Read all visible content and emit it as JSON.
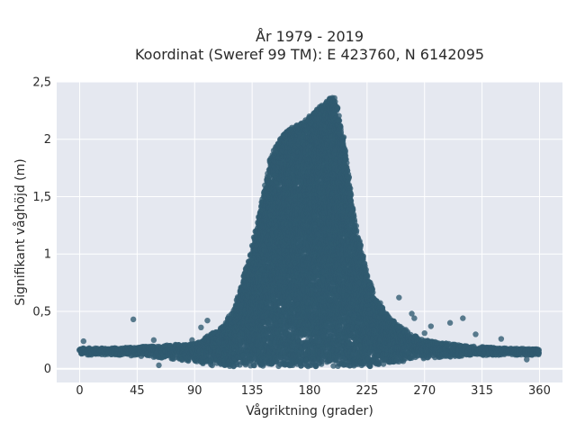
{
  "chart_data": {
    "type": "scatter",
    "title_lines": [
      "År 1979 - 2019",
      "Koordinat (Sweref 99 TM): E 423760, N 6142095"
    ],
    "xlabel": "Vågriktning (grader)",
    "ylabel": "Signifikant våghöjd (m)",
    "xlim": [
      -18,
      378
    ],
    "ylim": [
      -0.12,
      2.5
    ],
    "x_ticks": [
      0,
      45,
      90,
      135,
      180,
      225,
      270,
      315,
      360
    ],
    "x_tick_labels": [
      "0",
      "45",
      "90",
      "135",
      "180",
      "225",
      "270",
      "315",
      "360"
    ],
    "y_ticks": [
      0,
      0.5,
      1,
      1.5,
      2,
      2.5
    ],
    "y_tick_labels": [
      "0",
      "0,5",
      "1",
      "1,5",
      "2",
      "2,5"
    ],
    "grid": true,
    "legend": "none",
    "marker_color": "#2f5a70",
    "background_color": "#e5e8f0",
    "grid_color": "#ffffff",
    "envelope": {
      "x": [
        0,
        30,
        60,
        90,
        100,
        110,
        115,
        120,
        125,
        130,
        135,
        140,
        145,
        150,
        155,
        160,
        165,
        170,
        175,
        180,
        185,
        190,
        195,
        200,
        205,
        210,
        215,
        220,
        225,
        230,
        240,
        250,
        260,
        270,
        300,
        330,
        360
      ],
      "y_max": [
        0.18,
        0.18,
        0.2,
        0.22,
        0.28,
        0.35,
        0.42,
        0.5,
        0.65,
        0.85,
        1.05,
        1.3,
        1.6,
        1.85,
        1.98,
        2.05,
        2.1,
        2.12,
        2.15,
        2.2,
        2.25,
        2.3,
        2.35,
        2.38,
        2.1,
        1.7,
        1.3,
        1.05,
        0.85,
        0.65,
        0.48,
        0.38,
        0.3,
        0.25,
        0.2,
        0.18,
        0.17
      ],
      "y_min": [
        0.12,
        0.12,
        0.1,
        0.06,
        0.03,
        0.02,
        0.02,
        0.02,
        0.02,
        0.02,
        0.02,
        0.02,
        0.02,
        0.02,
        0.02,
        0.02,
        0.02,
        0.02,
        0.02,
        0.02,
        0.02,
        0.02,
        0.02,
        0.02,
        0.02,
        0.02,
        0.02,
        0.02,
        0.02,
        0.02,
        0.04,
        0.06,
        0.08,
        0.09,
        0.11,
        0.12,
        0.12
      ]
    },
    "outliers": {
      "x": [
        3,
        42,
        58,
        62,
        88,
        95,
        100,
        250,
        260,
        262,
        270,
        275,
        290,
        300,
        310,
        330,
        350
      ],
      "y": [
        0.24,
        0.43,
        0.25,
        0.03,
        0.25,
        0.36,
        0.42,
        0.62,
        0.48,
        0.44,
        0.31,
        0.37,
        0.4,
        0.44,
        0.3,
        0.26,
        0.08
      ]
    }
  }
}
